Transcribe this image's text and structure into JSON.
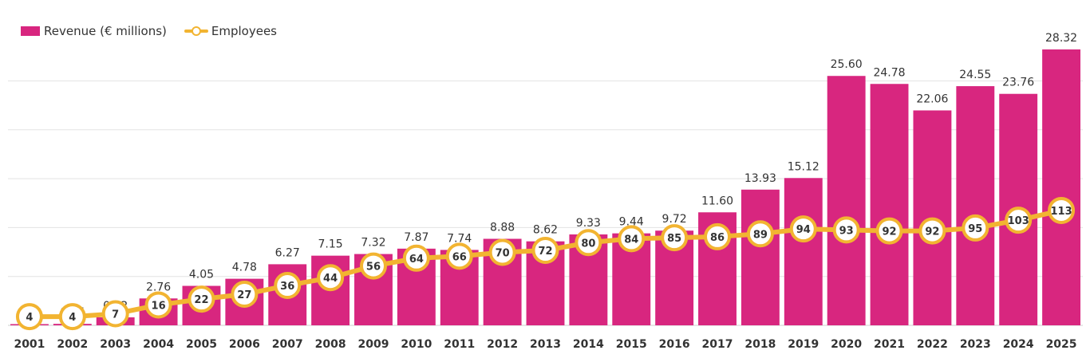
{
  "legend": {
    "revenue_label": "Revenue (€ millions)",
    "employees_label": "Employees"
  },
  "colors": {
    "bar": "#d8267f",
    "line": "#f2b431",
    "grid": "#e3e3e3",
    "text": "#333333"
  },
  "chart_data": {
    "type": "bar",
    "title": "",
    "categories": [
      "2001",
      "2002",
      "2003",
      "2004",
      "2005",
      "2006",
      "2007",
      "2008",
      "2009",
      "2010",
      "2011",
      "2012",
      "2013",
      "2014",
      "2015",
      "2016",
      "2017",
      "2018",
      "2019",
      "2020",
      "2021",
      "2022",
      "2023",
      "2024",
      "2025"
    ],
    "series": [
      {
        "name": "Revenue (€ millions)",
        "type": "bar",
        "values": [
          0.03,
          0.15,
          0.82,
          2.76,
          4.05,
          4.78,
          6.27,
          7.15,
          7.32,
          7.87,
          7.74,
          8.88,
          8.62,
          9.33,
          9.44,
          9.72,
          11.6,
          13.93,
          15.12,
          25.6,
          24.78,
          22.06,
          24.55,
          23.76,
          28.32
        ],
        "labels": [
          "0.03",
          "0.15",
          "0.82",
          "2.76",
          "4.05",
          "4.78",
          "6.27",
          "7.15",
          "7.32",
          "7.87",
          "7.74",
          "8.88",
          "8.62",
          "9.33",
          "9.44",
          "9.72",
          "11.60",
          "13.93",
          "15.12",
          "25.60",
          "24.78",
          "22.06",
          "24.55",
          "23.76",
          "28.32"
        ]
      },
      {
        "name": "Employees",
        "type": "line",
        "values": [
          4,
          4,
          7,
          16,
          22,
          27,
          36,
          44,
          56,
          64,
          66,
          70,
          72,
          80,
          84,
          85,
          86,
          89,
          94,
          93,
          92,
          92,
          95,
          103,
          113
        ]
      }
    ],
    "bar_ylim": [
      0,
      28.32
    ],
    "line_ylim": [
      0,
      283.2
    ],
    "grid": true,
    "legend_position": "top-left"
  }
}
